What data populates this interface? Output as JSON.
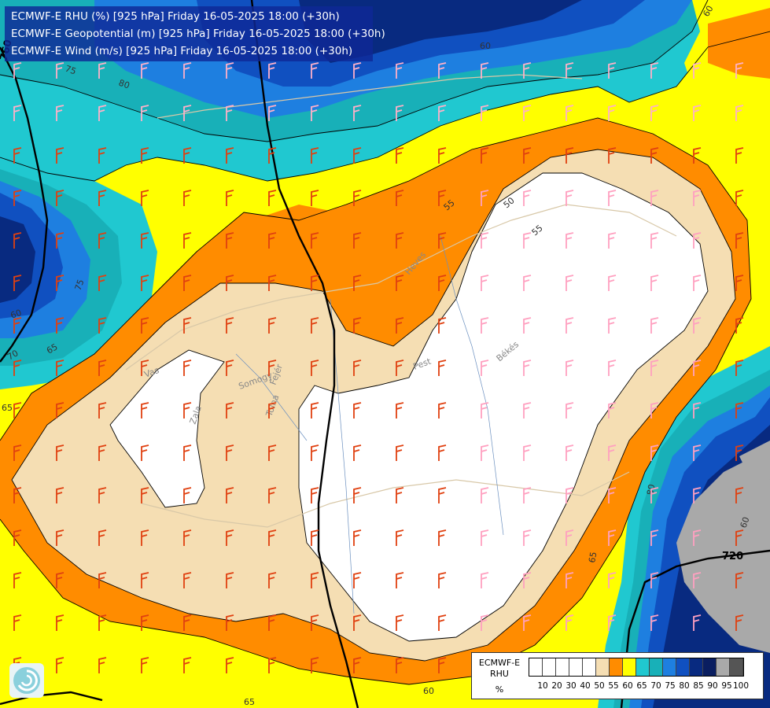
{
  "header": {
    "line1": "ECMWF-E RHU (%) [925 hPa] Friday 16-05-2025 18:00 (+30h)",
    "line2": "ECMWF-E Geopotential (m) [925 hPa] Friday 16-05-2025 18:00 (+30h)",
    "line3": "ECMWF-E Wind (m/s) [925 hPa] Friday 16-05-2025 18:00 (+30h)"
  },
  "legend": {
    "title1": "ECMWF-E",
    "title2": "RHU",
    "unit": "%",
    "levels": [
      "10",
      "20",
      "30",
      "40",
      "50",
      "55",
      "60",
      "65",
      "70",
      "75",
      "80",
      "85",
      "90",
      "95",
      "100"
    ],
    "colors": [
      "#ffffff",
      "#ffffff",
      "#ffffff",
      "#ffffff",
      "#ffffff",
      "#f5deb3",
      "#ff8c00",
      "#ffff00",
      "#20c8d0",
      "#18b0b8",
      "#1e7fe0",
      "#1050c0",
      "#082a80",
      "#0a1e60",
      "#a9a9a9",
      "#555555"
    ]
  },
  "geopotential_labels": [
    "760",
    "720"
  ],
  "contour_labels": [
    "60",
    "75",
    "80",
    "75",
    "60",
    "65",
    "70",
    "65",
    "55",
    "50",
    "55",
    "65",
    "60",
    "65",
    "60",
    "80",
    "60"
  ],
  "place_labels": [
    "Vas",
    "Zala",
    "Somogy",
    "Fejér",
    "Tolna",
    "Heves",
    "Pest",
    "Békés"
  ],
  "icons": {
    "logo": "ecmwf-swirl-logo-icon"
  }
}
